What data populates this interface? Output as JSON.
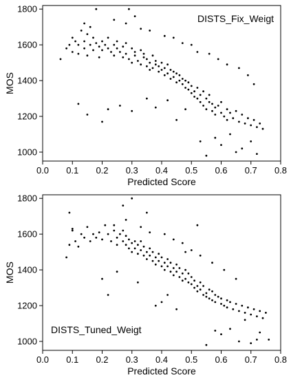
{
  "chart_data": [
    {
      "type": "scatter",
      "title": "",
      "annotation": "DISTS_Fix_Weigt",
      "annotation_position": "top-right",
      "xlabel": "Predicted Score",
      "ylabel": "MOS",
      "xlim": [
        0.0,
        0.8
      ],
      "ylim": [
        950,
        1820
      ],
      "xticks": [
        0.0,
        0.1,
        0.2,
        0.3,
        0.4,
        0.5,
        0.6,
        0.7,
        0.8
      ],
      "xtick_labels": [
        "0.0",
        "0.1",
        "0.2",
        "0.3",
        "0.4",
        "0.5",
        "0.6",
        "0.7",
        "0.8"
      ],
      "yticks": [
        1000,
        1200,
        1400,
        1600,
        1800
      ],
      "ytick_labels": [
        "1000",
        "1200",
        "1400",
        "1600",
        "1800"
      ],
      "grid": false,
      "marker_color": "#000000",
      "series": [
        {
          "x": [
            0.06,
            0.08,
            0.09,
            0.1,
            0.1,
            0.11,
            0.12,
            0.12,
            0.13,
            0.14,
            0.14,
            0.15,
            0.15,
            0.16,
            0.17,
            0.17,
            0.18,
            0.19,
            0.19,
            0.2,
            0.2,
            0.21,
            0.22,
            0.22,
            0.23,
            0.24,
            0.24,
            0.25,
            0.25,
            0.26,
            0.27,
            0.27,
            0.28,
            0.28,
            0.29,
            0.3,
            0.3,
            0.31,
            0.31,
            0.32,
            0.33,
            0.33,
            0.34,
            0.34,
            0.35,
            0.35,
            0.36,
            0.36,
            0.37,
            0.37,
            0.38,
            0.38,
            0.39,
            0.39,
            0.4,
            0.4,
            0.41,
            0.41,
            0.42,
            0.42,
            0.43,
            0.43,
            0.44,
            0.44,
            0.45,
            0.45,
            0.46,
            0.46,
            0.47,
            0.47,
            0.48,
            0.48,
            0.49,
            0.49,
            0.5,
            0.5,
            0.51,
            0.51,
            0.52,
            0.52,
            0.53,
            0.53,
            0.54,
            0.54,
            0.55,
            0.55,
            0.56,
            0.56,
            0.57,
            0.57,
            0.58,
            0.58,
            0.59,
            0.6,
            0.6,
            0.61,
            0.62,
            0.62,
            0.63,
            0.64,
            0.65,
            0.66,
            0.67,
            0.68,
            0.69,
            0.7,
            0.71,
            0.72,
            0.73,
            0.74,
            0.18,
            0.29,
            0.31,
            0.2,
            0.26,
            0.15,
            0.22,
            0.3,
            0.35,
            0.38,
            0.42,
            0.45,
            0.48,
            0.53,
            0.55,
            0.58,
            0.6,
            0.63,
            0.65,
            0.67,
            0.7,
            0.72,
            0.12,
            0.14,
            0.16,
            0.24,
            0.28,
            0.33,
            0.36,
            0.41,
            0.44,
            0.47,
            0.5,
            0.52,
            0.56,
            0.59,
            0.62,
            0.66,
            0.69,
            0.71
          ],
          "y": [
            1520,
            1580,
            1600,
            1560,
            1640,
            1620,
            1550,
            1600,
            1680,
            1580,
            1620,
            1540,
            1660,
            1600,
            1570,
            1640,
            1610,
            1590,
            1530,
            1620,
            1570,
            1600,
            1580,
            1640,
            1560,
            1600,
            1540,
            1580,
            1620,
            1560,
            1530,
            1590,
            1550,
            1610,
            1520,
            1580,
            1500,
            1560,
            1540,
            1510,
            1570,
            1490,
            1530,
            1550,
            1480,
            1520,
            1500,
            1460,
            1540,
            1470,
            1490,
            1510,
            1450,
            1480,
            1460,
            1500,
            1430,
            1470,
            1440,
            1490,
            1410,
            1460,
            1420,
            1450,
            1390,
            1440,
            1400,
            1430,
            1380,
            1410,
            1360,
            1400,
            1350,
            1390,
            1330,
            1370,
            1340,
            1310,
            1360,
            1300,
            1320,
            1280,
            1340,
            1260,
            1300,
            1240,
            1280,
            1320,
            1230,
            1270,
            1250,
            1210,
            1260,
            1220,
            1280,
            1200,
            1240,
            1180,
            1220,
            1190,
            1230,
            1170,
            1210,
            1160,
            1190,
            1150,
            1180,
            1140,
            1160,
            1130,
            1800,
            1800,
            1760,
            1170,
            1260,
            1210,
            1240,
            1230,
            1300,
            1250,
            1290,
            1180,
            1240,
            1060,
            980,
            1080,
            1040,
            1100,
            1000,
            1020,
            1060,
            990,
            1270,
            1720,
            1700,
            1740,
            1720,
            1690,
            1680,
            1650,
            1640,
            1610,
            1600,
            1560,
            1550,
            1520,
            1490,
            1470,
            1430,
            1380
          ]
        }
      ]
    },
    {
      "type": "scatter",
      "title": "",
      "annotation": "DISTS_Tuned_Weigt",
      "annotation_position": "bottom-left",
      "xlabel": "Predicted Score",
      "ylabel": "MOS",
      "xlim": [
        0.0,
        0.8
      ],
      "ylim": [
        950,
        1820
      ],
      "xticks": [
        0.0,
        0.1,
        0.2,
        0.3,
        0.4,
        0.5,
        0.6,
        0.7,
        0.8
      ],
      "xtick_labels": [
        "0.0",
        "0.1",
        "0.2",
        "0.3",
        "0.4",
        "0.5",
        "0.6",
        "0.7",
        "0.8"
      ],
      "yticks": [
        1000,
        1200,
        1400,
        1600,
        1800
      ],
      "ytick_labels": [
        "1000",
        "1200",
        "1400",
        "1600",
        "1800"
      ],
      "grid": false,
      "marker_color": "#000000",
      "series": [
        {
          "x": [
            0.08,
            0.09,
            0.1,
            0.11,
            0.12,
            0.13,
            0.14,
            0.15,
            0.16,
            0.17,
            0.18,
            0.19,
            0.2,
            0.21,
            0.22,
            0.23,
            0.24,
            0.25,
            0.25,
            0.26,
            0.27,
            0.27,
            0.28,
            0.28,
            0.29,
            0.29,
            0.3,
            0.3,
            0.31,
            0.31,
            0.32,
            0.32,
            0.33,
            0.33,
            0.34,
            0.34,
            0.35,
            0.35,
            0.36,
            0.36,
            0.37,
            0.37,
            0.38,
            0.38,
            0.39,
            0.39,
            0.4,
            0.4,
            0.41,
            0.41,
            0.42,
            0.42,
            0.43,
            0.43,
            0.44,
            0.44,
            0.45,
            0.45,
            0.46,
            0.46,
            0.47,
            0.47,
            0.48,
            0.48,
            0.49,
            0.49,
            0.5,
            0.5,
            0.51,
            0.51,
            0.52,
            0.52,
            0.53,
            0.53,
            0.54,
            0.54,
            0.55,
            0.55,
            0.56,
            0.56,
            0.57,
            0.57,
            0.58,
            0.58,
            0.59,
            0.6,
            0.6,
            0.61,
            0.62,
            0.62,
            0.63,
            0.64,
            0.65,
            0.66,
            0.67,
            0.68,
            0.69,
            0.7,
            0.71,
            0.72,
            0.73,
            0.74,
            0.75,
            0.76,
            0.09,
            0.1,
            0.2,
            0.22,
            0.25,
            0.27,
            0.3,
            0.32,
            0.35,
            0.38,
            0.4,
            0.42,
            0.45,
            0.48,
            0.52,
            0.55,
            0.58,
            0.6,
            0.63,
            0.66,
            0.68,
            0.7,
            0.72,
            0.73,
            0.24,
            0.28,
            0.33,
            0.36,
            0.41,
            0.44,
            0.47,
            0.5,
            0.53,
            0.57,
            0.61,
            0.65
          ],
          "y": [
            1470,
            1540,
            1620,
            1560,
            1530,
            1600,
            1580,
            1640,
            1560,
            1600,
            1580,
            1610,
            1570,
            1650,
            1600,
            1560,
            1620,
            1580,
            1540,
            1600,
            1560,
            1620,
            1540,
            1590,
            1520,
            1570,
            1550,
            1500,
            1560,
            1520,
            1540,
            1490,
            1510,
            1560,
            1480,
            1530,
            1500,
            1460,
            1520,
            1480,
            1450,
            1500,
            1470,
            1430,
            1490,
            1450,
            1420,
            1470,
            1440,
            1400,
            1460,
            1420,
            1390,
            1440,
            1410,
            1370,
            1430,
            1390,
            1360,
            1410,
            1380,
            1340,
            1400,
            1350,
            1330,
            1380,
            1320,
            1360,
            1300,
            1340,
            1310,
            1280,
            1330,
            1290,
            1260,
            1310,
            1270,
            1250,
            1290,
            1240,
            1280,
            1230,
            1260,
            1220,
            1250,
            1210,
            1240,
            1200,
            1230,
            1190,
            1220,
            1180,
            1210,
            1170,
            1200,
            1160,
            1190,
            1150,
            1180,
            1140,
            1170,
            1130,
            1160,
            1010,
            1720,
            1630,
            1350,
            1260,
            1390,
            1760,
            1800,
            1330,
            1720,
            1200,
            1220,
            1260,
            1180,
            1500,
            1650,
            980,
            1060,
            1040,
            1070,
            1000,
            1120,
            990,
            1010,
            1050,
            1650,
            1680,
            1640,
            1610,
            1600,
            1570,
            1550,
            1510,
            1480,
            1440,
            1400,
            1350
          ]
        }
      ]
    }
  ]
}
